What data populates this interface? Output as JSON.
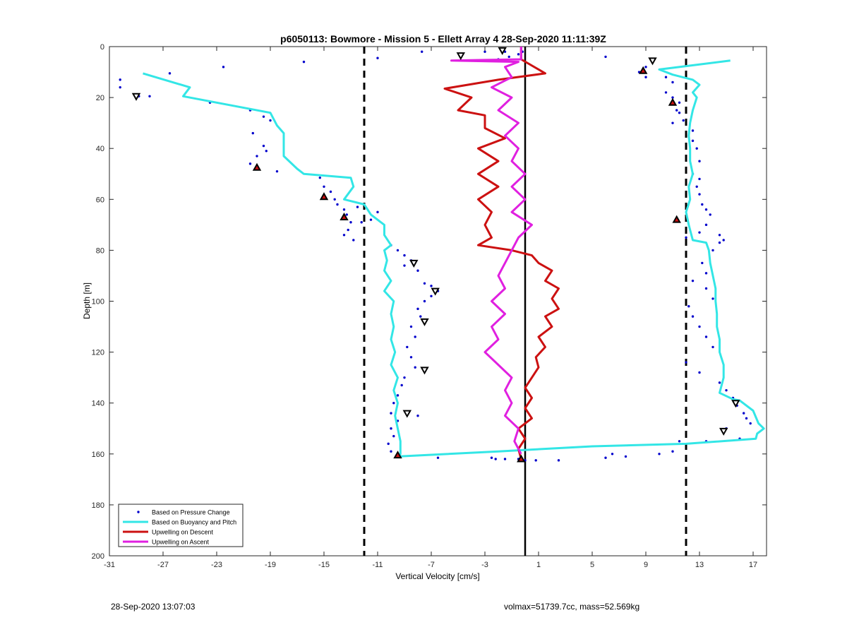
{
  "footer": {
    "timestamp": "28-Sep-2020 13:07:03",
    "params": "volmax=51739.7cc, mass=52.569kg"
  },
  "chart_data": {
    "type": "line",
    "title": "p6050113: Bowmore - Mission 5 - Ellett Array 4 28-Sep-2020 11:11:39Z",
    "xlabel": "Vertical Velocity [cm/s]",
    "ylabel": "Depth [m]",
    "xlim": [
      -31,
      18
    ],
    "ylim": [
      0,
      200
    ],
    "y_reversed": true,
    "xticks": [
      -31,
      -27,
      -23,
      -19,
      -15,
      -11,
      -7,
      -3,
      1,
      5,
      9,
      13,
      17
    ],
    "yticks": [
      0,
      20,
      40,
      60,
      80,
      100,
      120,
      140,
      160,
      180,
      200
    ],
    "grid": false,
    "legend_position": "bottom-left",
    "reference_lines": {
      "solid_x": 0,
      "dashed_x": [
        -12,
        12
      ],
      "colors": {
        "solid": "#000000",
        "dashed": "#000000"
      }
    },
    "series": [
      {
        "name": "Based on Pressure Change",
        "style": "dots",
        "color": "#0000cc",
        "points": [
          [
            -30.2,
            13
          ],
          [
            -30.2,
            16
          ],
          [
            -28.8,
            19.5
          ],
          [
            -28,
            19.5
          ],
          [
            -26.5,
            10.5
          ],
          [
            -22.5,
            8
          ],
          [
            -23.5,
            22
          ],
          [
            -20.5,
            25
          ],
          [
            -19.5,
            27.5
          ],
          [
            -19,
            29
          ],
          [
            -20.3,
            34
          ],
          [
            -19.5,
            39
          ],
          [
            -20,
            43
          ],
          [
            -19.3,
            41
          ],
          [
            -20.5,
            46
          ],
          [
            -18.5,
            49
          ],
          [
            -16.5,
            6
          ],
          [
            -15.3,
            51.5
          ],
          [
            -15,
            55
          ],
          [
            -14.5,
            57
          ],
          [
            -14.2,
            60
          ],
          [
            -14,
            62
          ],
          [
            -13.5,
            64
          ],
          [
            -13.3,
            66
          ],
          [
            -13,
            69
          ],
          [
            -13.2,
            72
          ],
          [
            -13.5,
            74
          ],
          [
            -12.5,
            63
          ],
          [
            -12.2,
            69
          ],
          [
            -11.5,
            68
          ],
          [
            -11,
            65
          ],
          [
            -12.8,
            76
          ],
          [
            -10,
            78
          ],
          [
            -9.5,
            80
          ],
          [
            -9,
            82
          ],
          [
            -8.5,
            84
          ],
          [
            -9,
            86
          ],
          [
            -8,
            88
          ],
          [
            -7.5,
            93
          ],
          [
            -7,
            94
          ],
          [
            -6.5,
            96
          ],
          [
            -7,
            98
          ],
          [
            -7.5,
            100
          ],
          [
            -8,
            103
          ],
          [
            -7.8,
            106
          ],
          [
            -8.5,
            110
          ],
          [
            -8.2,
            114
          ],
          [
            -8.8,
            118
          ],
          [
            -8.5,
            122
          ],
          [
            -8.2,
            126
          ],
          [
            -9,
            130
          ],
          [
            -9.2,
            133
          ],
          [
            -9.5,
            137
          ],
          [
            -9.8,
            140
          ],
          [
            -10,
            144
          ],
          [
            -9.5,
            147
          ],
          [
            -10,
            150
          ],
          [
            -9.8,
            153
          ],
          [
            -10.2,
            156
          ],
          [
            -10,
            159
          ],
          [
            -9.5,
            160
          ],
          [
            -8,
            145
          ],
          [
            -6.5,
            161.5
          ],
          [
            -11,
            4.5
          ],
          [
            -7.7,
            2
          ],
          [
            -3,
            2
          ],
          [
            -2,
            5
          ],
          [
            -1.5,
            2
          ],
          [
            -1.2,
            4
          ],
          [
            -0.5,
            3
          ],
          [
            -0.2,
            2
          ],
          [
            -2.5,
            161.5
          ],
          [
            -2.2,
            162
          ],
          [
            -1.5,
            162
          ],
          [
            -0.5,
            162
          ],
          [
            0,
            162.5
          ],
          [
            0.8,
            162.5
          ],
          [
            2.5,
            162.5
          ],
          [
            6,
            161.5
          ],
          [
            6.5,
            160
          ],
          [
            7.5,
            161
          ],
          [
            10,
            160
          ],
          [
            11,
            159
          ],
          [
            9,
            8
          ],
          [
            9.5,
            6
          ],
          [
            8.5,
            10
          ],
          [
            9,
            12
          ],
          [
            10.5,
            12
          ],
          [
            11,
            14
          ],
          [
            10.5,
            18
          ],
          [
            11,
            20
          ],
          [
            11.5,
            22
          ],
          [
            11.5,
            26
          ],
          [
            11.8,
            29
          ],
          [
            12.5,
            33
          ],
          [
            12.5,
            37
          ],
          [
            12.8,
            40
          ],
          [
            13,
            45
          ],
          [
            12.5,
            50
          ],
          [
            13,
            52
          ],
          [
            12.8,
            55
          ],
          [
            13,
            58
          ],
          [
            13.2,
            62
          ],
          [
            13.5,
            64
          ],
          [
            13.8,
            66
          ],
          [
            13.5,
            70
          ],
          [
            13,
            73
          ],
          [
            14.5,
            74
          ],
          [
            14.5,
            77
          ],
          [
            14,
            80
          ],
          [
            13.2,
            85
          ],
          [
            13.5,
            89
          ],
          [
            12.5,
            92
          ],
          [
            13.5,
            95
          ],
          [
            14,
            99
          ],
          [
            12.2,
            102
          ],
          [
            12.5,
            106
          ],
          [
            13,
            110
          ],
          [
            13.5,
            114
          ],
          [
            14,
            118
          ],
          [
            12,
            124
          ],
          [
            13,
            128
          ],
          [
            14.5,
            132
          ],
          [
            15,
            135
          ],
          [
            15.5,
            138
          ],
          [
            15.8,
            141
          ],
          [
            16.3,
            144
          ],
          [
            16.5,
            146
          ],
          [
            16.8,
            148
          ],
          [
            15,
            150
          ],
          [
            16,
            154
          ],
          [
            13.5,
            155
          ],
          [
            14.8,
            76
          ],
          [
            11,
            30
          ],
          [
            11.3,
            25
          ],
          [
            12,
            75
          ],
          [
            11.5,
            155
          ],
          [
            6,
            4
          ]
        ]
      },
      {
        "name": "Based on Buoyancy and Pitch",
        "style": "line",
        "color": "#33e6e6",
        "points": [
          [
            -28.5,
            10.5
          ],
          [
            -25,
            16
          ],
          [
            -25.5,
            19.5
          ],
          [
            -19,
            26
          ],
          [
            -18.5,
            31
          ],
          [
            -18,
            34
          ],
          [
            -18,
            43
          ],
          [
            -17,
            48
          ],
          [
            -16.5,
            50
          ],
          [
            -13,
            51.5
          ],
          [
            -12.8,
            55
          ],
          [
            -13.5,
            60
          ],
          [
            -12,
            62
          ],
          [
            -11.5,
            66
          ],
          [
            -10.5,
            70
          ],
          [
            -10.5,
            74
          ],
          [
            -10,
            78
          ],
          [
            -10.5,
            80
          ],
          [
            -10.3,
            84
          ],
          [
            -10.5,
            88
          ],
          [
            -10,
            92
          ],
          [
            -10.5,
            96
          ],
          [
            -9.8,
            100
          ],
          [
            -10,
            105
          ],
          [
            -9.8,
            110
          ],
          [
            -10,
            115
          ],
          [
            -9.7,
            120
          ],
          [
            -10,
            125
          ],
          [
            -9.5,
            130
          ],
          [
            -9.8,
            135
          ],
          [
            -9.5,
            140
          ],
          [
            -9.7,
            145
          ],
          [
            -9.5,
            150
          ],
          [
            -9.3,
            155
          ],
          [
            -9.3,
            160
          ],
          [
            -9.5,
            161
          ],
          [
            -2,
            159
          ],
          [
            5,
            157
          ],
          [
            12,
            156
          ],
          [
            17.2,
            154
          ],
          [
            17.3,
            152
          ],
          [
            17.8,
            150
          ],
          [
            17.4,
            148
          ],
          [
            17,
            143
          ],
          [
            16,
            139
          ],
          [
            15.5,
            138.5
          ],
          [
            14.5,
            136
          ],
          [
            14.8,
            130
          ],
          [
            14.8,
            125
          ],
          [
            14.5,
            120
          ],
          [
            14.5,
            115
          ],
          [
            14.3,
            110
          ],
          [
            14.3,
            105
          ],
          [
            14.2,
            100
          ],
          [
            14.2,
            95
          ],
          [
            14,
            90
          ],
          [
            13.8,
            85
          ],
          [
            13.7,
            80
          ],
          [
            13.5,
            77
          ],
          [
            12.5,
            76
          ],
          [
            12.2,
            70
          ],
          [
            12,
            65
          ],
          [
            12.3,
            60
          ],
          [
            12.2,
            55
          ],
          [
            12.5,
            50
          ],
          [
            12.3,
            45
          ],
          [
            12.3,
            40
          ],
          [
            12.2,
            35
          ],
          [
            12.3,
            30
          ],
          [
            12.5,
            25
          ],
          [
            12.8,
            20
          ],
          [
            12.5,
            18
          ],
          [
            13,
            15
          ],
          [
            12.5,
            13
          ],
          [
            11,
            11
          ],
          [
            10,
            9
          ],
          [
            13,
            7
          ],
          [
            15.3,
            5.5
          ]
        ]
      },
      {
        "name": "Upwelling on Descent",
        "style": "line",
        "color": "#cc1111",
        "points": [
          [
            -0.3,
            0
          ],
          [
            -0.3,
            5
          ],
          [
            1.5,
            10.5
          ],
          [
            -2,
            13
          ],
          [
            -6,
            16.5
          ],
          [
            -4,
            20
          ],
          [
            -5,
            25
          ],
          [
            -3,
            27
          ],
          [
            -3,
            32
          ],
          [
            -1.5,
            36
          ],
          [
            -3.5,
            40
          ],
          [
            -2,
            45
          ],
          [
            -3.5,
            50
          ],
          [
            -2,
            55
          ],
          [
            -3.5,
            60
          ],
          [
            -2.5,
            65
          ],
          [
            -3,
            70
          ],
          [
            -2.5,
            75
          ],
          [
            -3.5,
            78
          ],
          [
            -1,
            80
          ],
          [
            0.5,
            82
          ],
          [
            1,
            85
          ],
          [
            2,
            88
          ],
          [
            1.5,
            92
          ],
          [
            2.5,
            95
          ],
          [
            2,
            99
          ],
          [
            2.5,
            103
          ],
          [
            1.5,
            106
          ],
          [
            2,
            110
          ],
          [
            1,
            114
          ],
          [
            1.5,
            118
          ],
          [
            0.8,
            122
          ],
          [
            1,
            126
          ],
          [
            0.5,
            130
          ],
          [
            0,
            134
          ],
          [
            0.5,
            138
          ],
          [
            0,
            142
          ],
          [
            0.5,
            146
          ],
          [
            -0.5,
            150
          ],
          [
            0,
            154
          ],
          [
            -0.5,
            158
          ],
          [
            -0.3,
            162
          ]
        ]
      },
      {
        "name": "Upwelling on Ascent",
        "style": "line",
        "color": "#e020e0",
        "points": [
          [
            -0.3,
            0
          ],
          [
            -0.3,
            5
          ],
          [
            -5.5,
            5.5
          ],
          [
            -0.5,
            6
          ],
          [
            -1.5,
            8
          ],
          [
            -1,
            12
          ],
          [
            -2.5,
            16
          ],
          [
            -1,
            20
          ],
          [
            -2,
            25
          ],
          [
            -0.5,
            30
          ],
          [
            -1.5,
            35
          ],
          [
            -0.5,
            40
          ],
          [
            -1,
            45
          ],
          [
            0,
            50
          ],
          [
            -1,
            55
          ],
          [
            0,
            60
          ],
          [
            -1,
            65
          ],
          [
            0.5,
            70
          ],
          [
            -0.5,
            75
          ],
          [
            -1,
            80
          ],
          [
            -1.5,
            85
          ],
          [
            -2,
            90
          ],
          [
            -1.5,
            95
          ],
          [
            -2.5,
            100
          ],
          [
            -1.5,
            105
          ],
          [
            -2.5,
            110
          ],
          [
            -2,
            115
          ],
          [
            -3,
            120
          ],
          [
            -2,
            125
          ],
          [
            -1,
            130
          ],
          [
            -1.5,
            135
          ],
          [
            -1,
            140
          ],
          [
            -1.5,
            145
          ],
          [
            -0.5,
            150
          ],
          [
            -0.8,
            155
          ],
          [
            -0.3,
            160
          ]
        ]
      }
    ],
    "markers_down_triangle": [
      [
        -4.8,
        3.5
      ],
      [
        -1.7,
        1.5
      ],
      [
        9.5,
        5.5
      ],
      [
        -29,
        19.5
      ],
      [
        -8.3,
        85
      ],
      [
        -6.7,
        96
      ],
      [
        -7.5,
        108
      ],
      [
        -7.5,
        127
      ],
      [
        -8.8,
        144
      ],
      [
        15.7,
        140
      ],
      [
        14.8,
        151
      ]
    ],
    "markers_up_triangle": [
      [
        -20,
        47.5
      ],
      [
        -15,
        59
      ],
      [
        -13.5,
        67
      ],
      [
        8.8,
        9.5
      ],
      [
        11,
        22
      ],
      [
        11.3,
        68
      ],
      [
        -9.5,
        160.5
      ],
      [
        -0.3,
        162
      ]
    ]
  }
}
